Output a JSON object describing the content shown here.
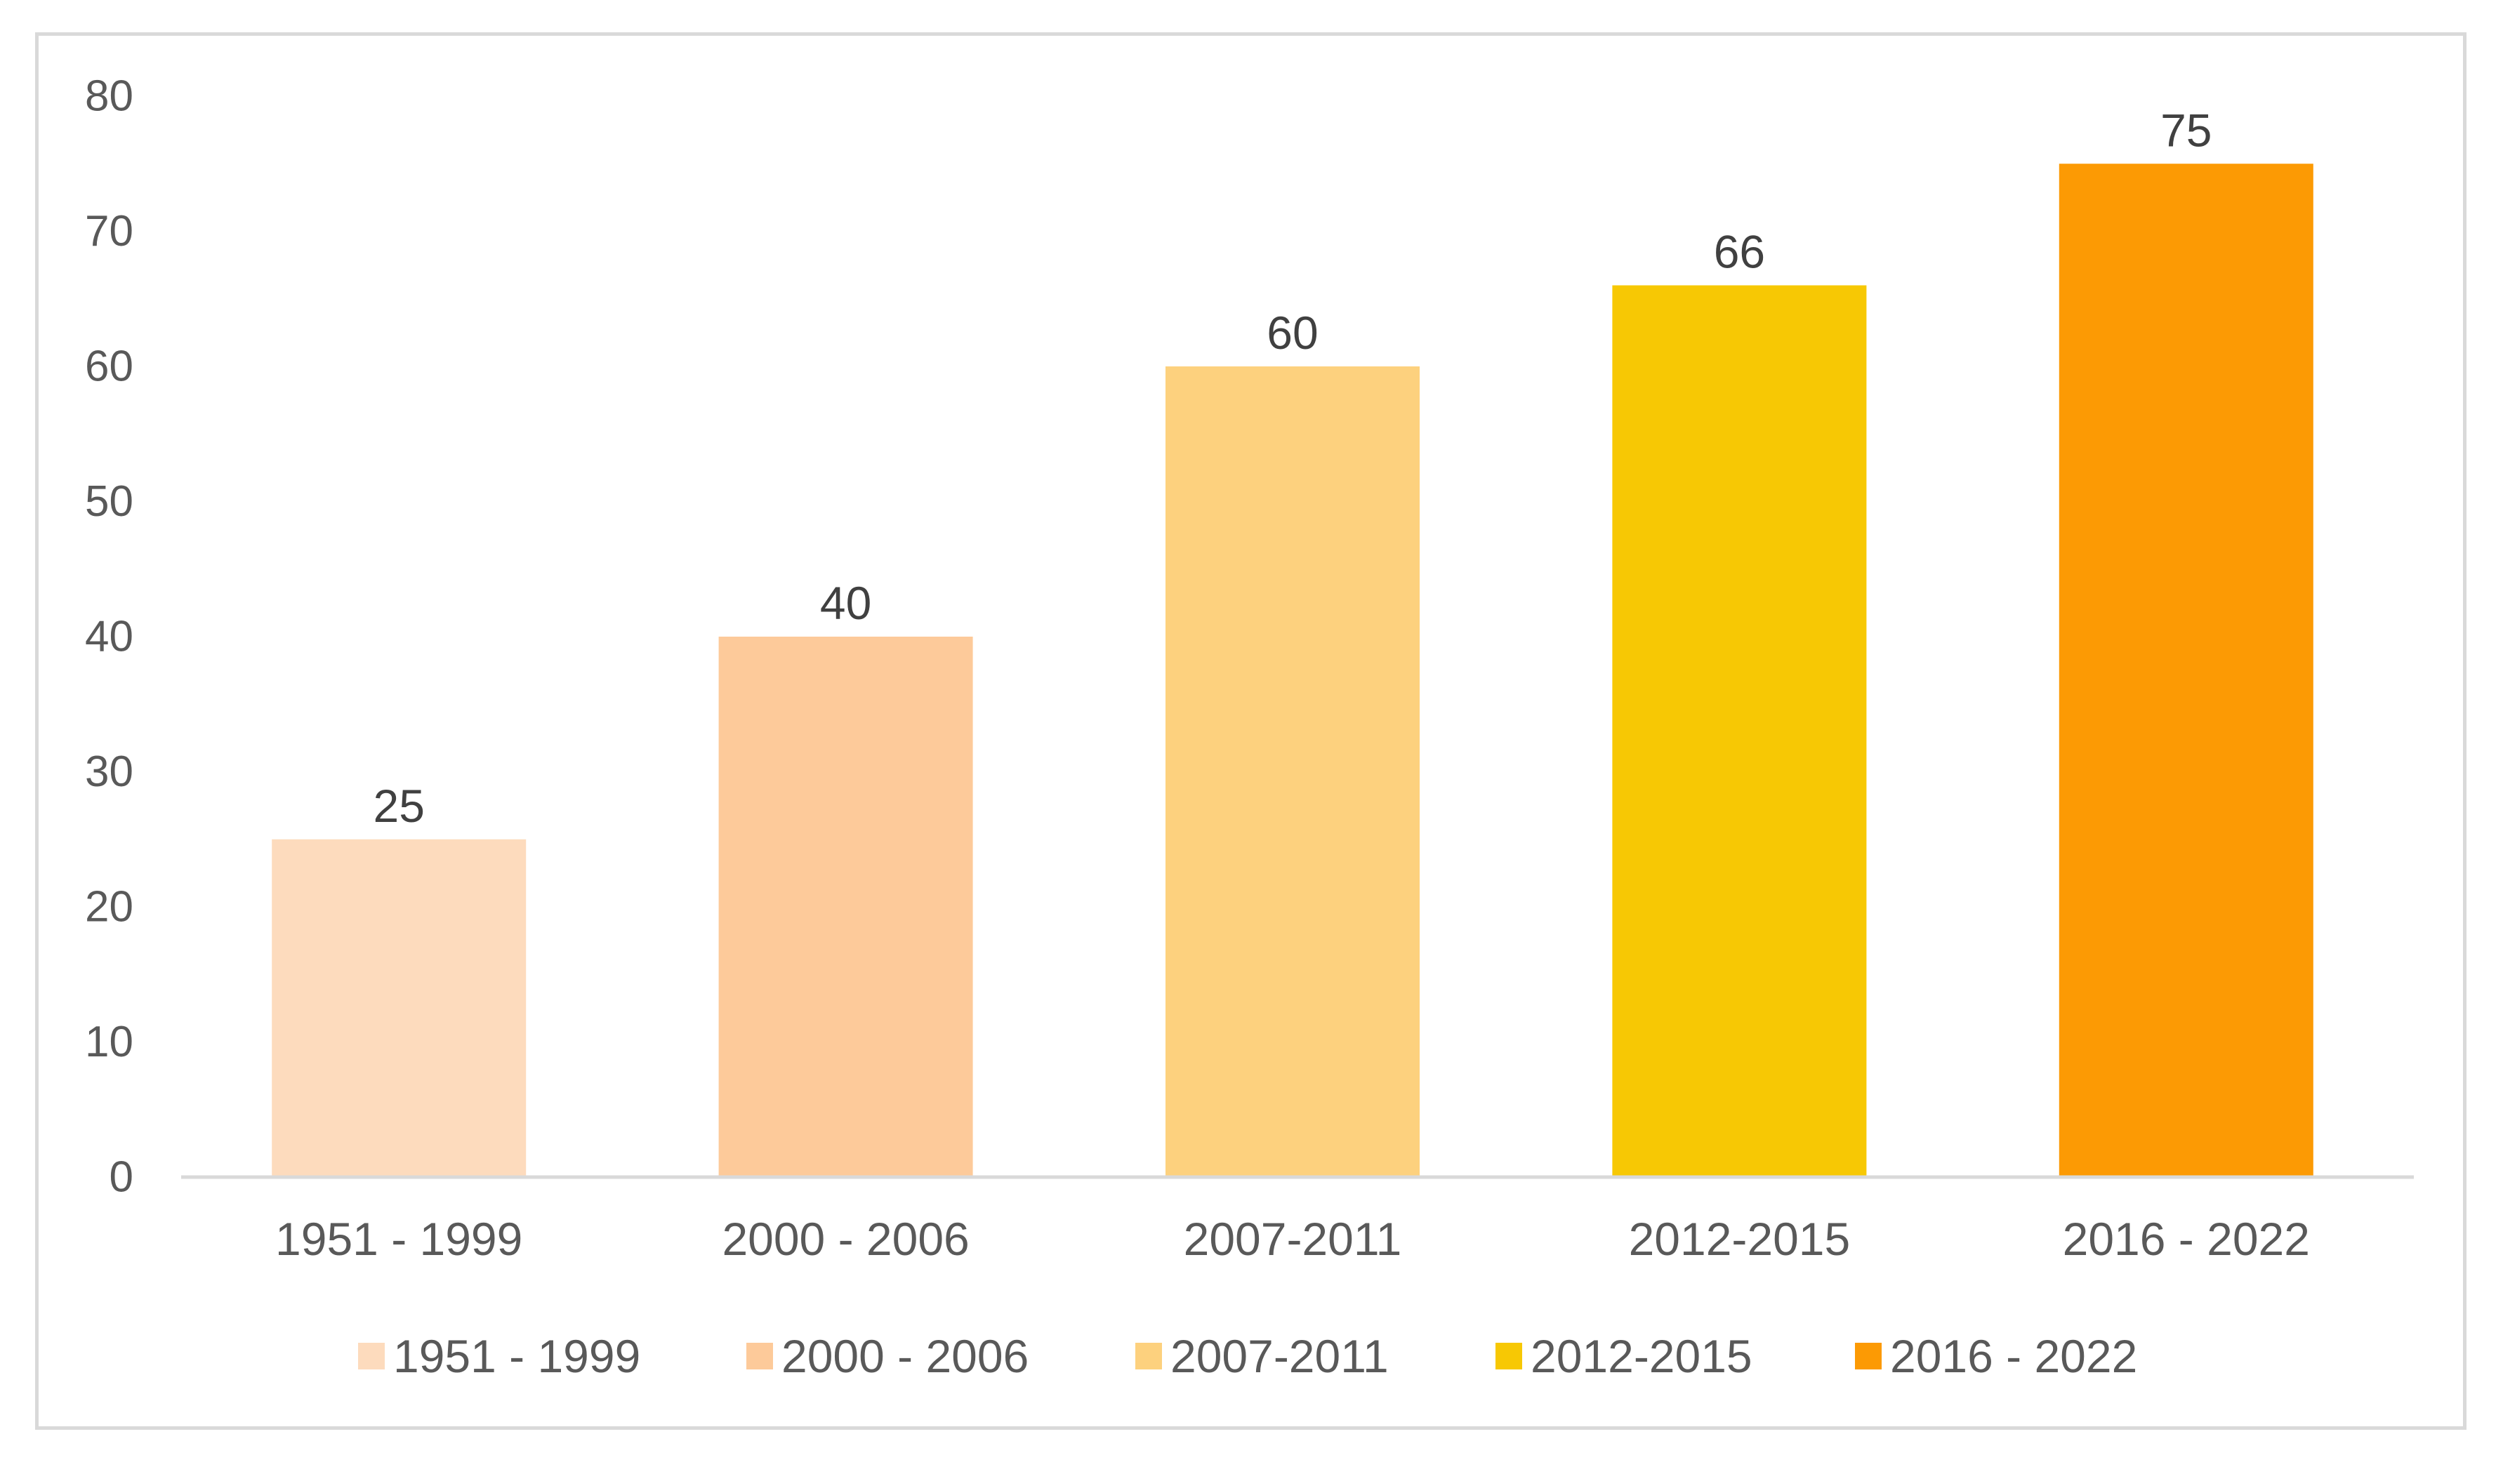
{
  "chart_data": {
    "type": "bar",
    "categories": [
      "1951 - 1999",
      "2000 - 2006",
      "2007-2011",
      "2012-2015",
      "2016 - 2022"
    ],
    "values": [
      25,
      40,
      60,
      66,
      75
    ],
    "colors": [
      "#FDDBBD",
      "#FDCA9A",
      "#FDD17E",
      "#F7C804",
      "#FC9A04"
    ],
    "title": "",
    "xlabel": "",
    "ylabel": "",
    "ylim": [
      0,
      80
    ],
    "yticks": [
      0,
      10,
      20,
      30,
      40,
      50,
      60,
      70,
      80
    ],
    "grid": false,
    "data_labels": true,
    "legend": {
      "position": "bottom",
      "entries": [
        "1951 - 1999",
        "2000 - 2006",
        "2007-2011",
        "2012-2015",
        "2016 - 2022"
      ]
    },
    "axis_color": "#d9d9d9"
  }
}
